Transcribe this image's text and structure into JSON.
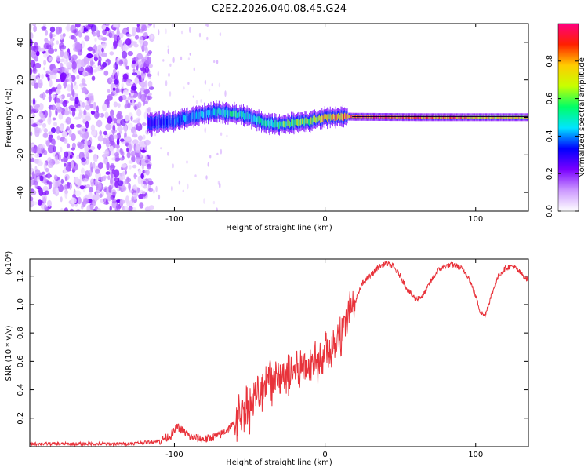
{
  "chart_data": [
    {
      "type": "heatmap",
      "title": "C2E2.2026.040.08.45.G24",
      "xlabel": "Height of straight line (km)",
      "ylabel": "Frequency (Hz)",
      "xlim": [
        -196,
        135
      ],
      "ylim": [
        -50,
        50
      ],
      "x_ticks": [
        -100,
        0,
        100
      ],
      "x_tick_labels": [
        "-100",
        "0",
        "100"
      ],
      "y_ticks": [
        -40,
        -20,
        0,
        20,
        40
      ],
      "y_tick_labels": [
        "-40",
        "-20",
        "0",
        "20",
        "40"
      ],
      "colorbar": {
        "label": "Normalized spectral amplitude",
        "range": [
          0,
          1
        ],
        "ticks": [
          0.0,
          0.2,
          0.4,
          0.6,
          0.8
        ],
        "tick_labels": [
          "0.0",
          "0.2",
          "0.4",
          "0.6",
          "0.8"
        ],
        "colors": [
          "#ffffff",
          "#cc99ff",
          "#7a00ff",
          "#0000ff",
          "#00e5ff",
          "#00ff66",
          "#c8ff00",
          "#ffcc00",
          "#ff2000",
          "#ff0080"
        ]
      },
      "noise_region": {
        "x": [
          -196,
          -115
        ],
        "level": 0.2
      },
      "signal_track": {
        "x": [
          -118,
          -110,
          -100,
          -90,
          -80,
          -70,
          -60,
          -50,
          -40,
          -30,
          -20,
          -10,
          0,
          10,
          20,
          40,
          60,
          80,
          100,
          120,
          135
        ],
        "freq": [
          -3,
          -2.5,
          -2,
          0,
          2,
          3,
          2,
          0,
          -3,
          -4,
          -3,
          -2,
          0,
          0.5,
          0.3,
          0.2,
          0.1,
          0.1,
          0.1,
          0.1,
          0.1
        ],
        "amplitude": [
          0.3,
          0.35,
          0.4,
          0.45,
          0.45,
          0.5,
          0.55,
          0.5,
          0.55,
          0.6,
          0.65,
          0.7,
          0.8,
          0.9,
          0.95,
          1.0,
          0.95,
          0.9,
          0.85,
          0.8,
          0.8
        ]
      }
    },
    {
      "type": "line",
      "xlabel": "Height of straight line (km)",
      "ylabel": "SNR (10 * v/v)",
      "y_scale_label": "(x10⁴)",
      "xlim": [
        -196,
        135
      ],
      "ylim": [
        0,
        1.32
      ],
      "x_ticks": [
        -100,
        0,
        100
      ],
      "x_tick_labels": [
        "-100",
        "0",
        "100"
      ],
      "y_ticks": [
        0.2,
        0.4,
        0.6,
        0.8,
        1.0,
        1.2
      ],
      "y_tick_labels": [
        "0.2",
        "0.4",
        "0.6",
        "0.8",
        "1.0",
        "1.2"
      ],
      "series": [
        {
          "name": "SNR",
          "color": "#e8323a",
          "x": [
            -196,
            -160,
            -130,
            -110,
            -102,
            -98,
            -93,
            -90,
            -80,
            -70,
            -60,
            -55,
            -50,
            -45,
            -40,
            -37,
            -35,
            -30,
            -25,
            -20,
            -15,
            -10,
            -5,
            0,
            5,
            10,
            15,
            20,
            25,
            30,
            35,
            40,
            45,
            50,
            55,
            60,
            65,
            70,
            75,
            80,
            85,
            90,
            95,
            100,
            103,
            106,
            110,
            115,
            120,
            125,
            130,
            135
          ],
          "y": [
            0.02,
            0.02,
            0.02,
            0.04,
            0.08,
            0.14,
            0.1,
            0.07,
            0.05,
            0.08,
            0.16,
            0.25,
            0.28,
            0.35,
            0.4,
            0.55,
            0.45,
            0.5,
            0.48,
            0.55,
            0.55,
            0.58,
            0.62,
            0.66,
            0.72,
            0.8,
            0.9,
            1.02,
            1.15,
            1.2,
            1.26,
            1.29,
            1.27,
            1.2,
            1.1,
            1.04,
            1.06,
            1.16,
            1.24,
            1.27,
            1.28,
            1.26,
            1.2,
            1.06,
            0.95,
            0.92,
            1.05,
            1.2,
            1.26,
            1.27,
            1.22,
            1.17
          ]
        }
      ]
    }
  ]
}
